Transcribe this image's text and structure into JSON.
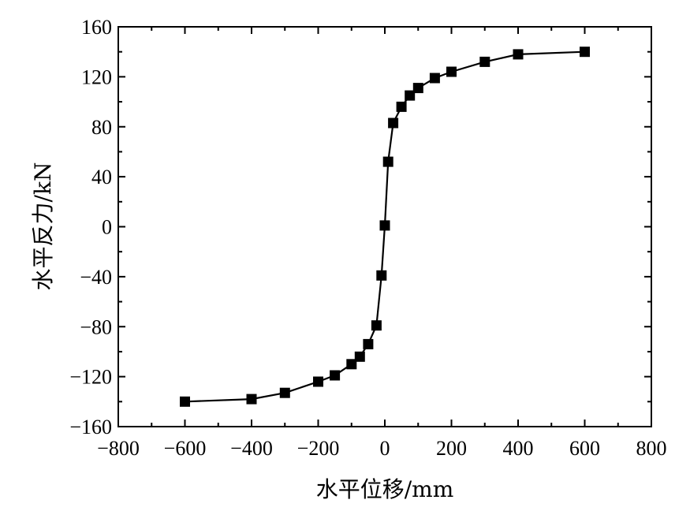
{
  "chart_data": {
    "type": "line",
    "title": "",
    "xlabel": "水平位移/mm",
    "ylabel": "水平反力/kN",
    "xlim": [
      -800,
      800
    ],
    "ylim": [
      -160,
      160
    ],
    "xticks": [
      -800,
      -600,
      -400,
      -200,
      0,
      200,
      400,
      600,
      800
    ],
    "yticks": [
      -160,
      -120,
      -80,
      -40,
      0,
      40,
      80,
      120,
      160
    ],
    "xtick_labels": [
      "−800",
      "−600",
      "−400",
      "−200",
      "0",
      "200",
      "400",
      "600",
      "800"
    ],
    "ytick_labels": [
      "−160",
      "−120",
      "−80",
      "−40",
      "0",
      "40",
      "80",
      "120",
      "160"
    ],
    "grid": false,
    "legend": "none",
    "series": [
      {
        "color": "#000000",
        "marker": "square",
        "x": [
          -600,
          -400,
          -300,
          -200,
          -150,
          -100,
          -75,
          -50,
          -25,
          -10,
          0,
          10,
          25,
          50,
          75,
          100,
          150,
          200,
          300,
          400,
          600
        ],
        "y": [
          -140,
          -138,
          -133,
          -124,
          -119,
          -110,
          -104,
          -94,
          -79,
          -39,
          1,
          52,
          83,
          96,
          105,
          111,
          119,
          124,
          132,
          138,
          140
        ]
      }
    ]
  }
}
